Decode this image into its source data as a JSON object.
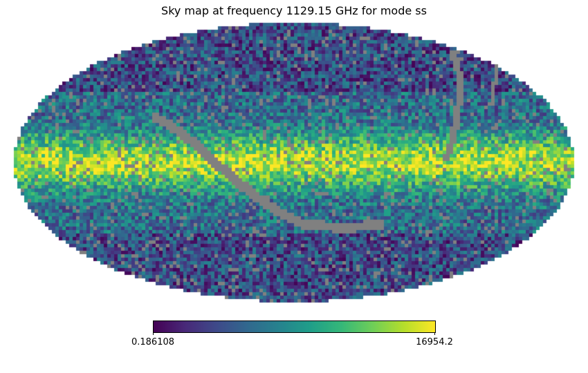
{
  "chart_data": {
    "type": "heatmap",
    "projection": "mollweide",
    "title": "Sky map at frequency 1129.15 GHz for mode ss",
    "colormap": "viridis",
    "colorbar": {
      "min_label": "0.186108",
      "max_label": "16954.2",
      "min": 0.186108,
      "max": 16954.2,
      "orientation": "horizontal",
      "placement": "bottom"
    },
    "masked_color": "#808080"
  }
}
